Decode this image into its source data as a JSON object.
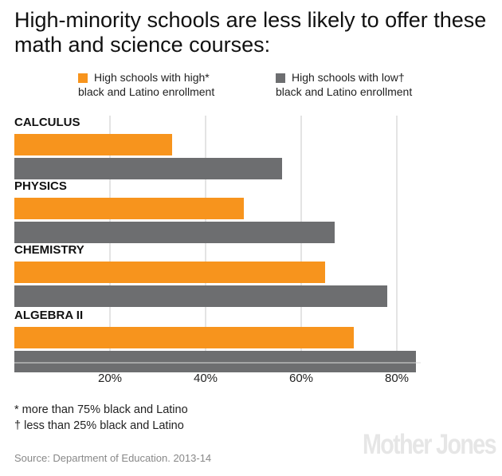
{
  "chart_data": {
    "type": "bar",
    "orientation": "horizontal",
    "title": "High-minority schools are less likely to offer these math and science courses:",
    "categories": [
      "CALCULUS",
      "PHYSICS",
      "CHEMISTRY",
      "ALGEBRA II"
    ],
    "series": [
      {
        "name": "High schools with high* black and Latino enrollment",
        "color": "#f7941d",
        "values": [
          33,
          48,
          65,
          71
        ]
      },
      {
        "name": "High schools with low† black and Latino enrollment",
        "color": "#6d6e70",
        "values": [
          56,
          67,
          78,
          84
        ]
      }
    ],
    "xlim": [
      0,
      85
    ],
    "xticks": [
      20,
      40,
      60,
      80
    ],
    "xtick_labels": [
      "20%",
      "40%",
      "60%",
      "80%"
    ],
    "grid": true,
    "legend_position": "top"
  },
  "legend": {
    "high_line1": "High schools with high*",
    "high_line2": "black and Latino enrollment",
    "low_line1": "High schools with low†",
    "low_line2": "black and Latino enrollment"
  },
  "notes": {
    "high_def": "* more than 75% black and Latino",
    "low_def": "† less than 25% black and Latino"
  },
  "source": "Source: Department of Education. 2013-14",
  "logo": "Mother Jones"
}
